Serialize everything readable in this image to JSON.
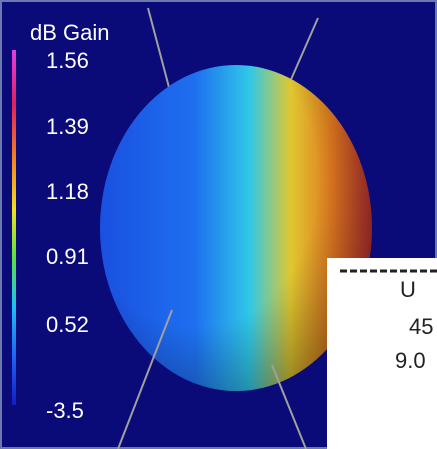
{
  "colorbar": {
    "title": "dB Gain",
    "labels": [
      "1.56",
      "1.39",
      "1.18",
      "0.91",
      "0.52",
      "-3.5"
    ]
  },
  "overlay": {
    "lines": [
      "U",
      "45",
      "9.0"
    ]
  }
}
